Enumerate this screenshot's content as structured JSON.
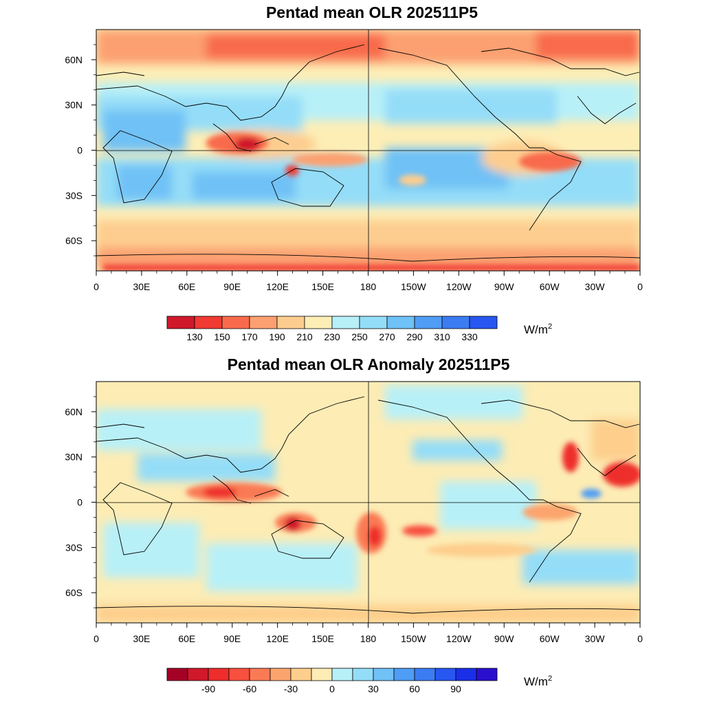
{
  "chart_data": [
    {
      "type": "heatmap",
      "title": "Pentad mean OLR 202511P5",
      "variable": "OLR",
      "units_text": "W/m",
      "units_sup": "2",
      "x_ticks": [
        "0",
        "30E",
        "60E",
        "90E",
        "120E",
        "150E",
        "180",
        "150W",
        "120W",
        "90W",
        "60W",
        "30W",
        "0"
      ],
      "y_ticks": [
        "60N",
        "30N",
        "0",
        "30S",
        "60S"
      ],
      "x_range_deg": [
        0,
        360
      ],
      "y_range_deg": [
        -80,
        80
      ],
      "colorbar_levels": [
        130,
        150,
        170,
        190,
        210,
        230,
        250,
        270,
        290,
        310,
        330
      ],
      "colorbar_labels": [
        "130",
        "150",
        "170",
        "190",
        "210",
        "230",
        "250",
        "270",
        "290",
        "310",
        "330"
      ],
      "colorbar_colors": [
        "#d0182b",
        "#f03a32",
        "#f86a4c",
        "#fca071",
        "#fdcd8f",
        "#fdeeb6",
        "#b8f0f8",
        "#94ddf8",
        "#6fc1f6",
        "#4f9df5",
        "#3c7cf2",
        "#2757f0"
      ]
    },
    {
      "type": "heatmap",
      "title": "Pentad mean OLR Anomaly 202511P5",
      "variable": "OLR anomaly",
      "units_text": "W/m",
      "units_sup": "2",
      "x_ticks": [
        "0",
        "30E",
        "60E",
        "90E",
        "120E",
        "150E",
        "180",
        "150W",
        "120W",
        "90W",
        "60W",
        "30W",
        "0"
      ],
      "y_ticks": [
        "60N",
        "30N",
        "0",
        "30S",
        "60S"
      ],
      "x_range_deg": [
        0,
        360
      ],
      "y_range_deg": [
        -80,
        80
      ],
      "colorbar_levels": [
        -105,
        -90,
        -75,
        -60,
        -45,
        -30,
        -15,
        0,
        15,
        30,
        45,
        60,
        75,
        90,
        105
      ],
      "colorbar_labels": [
        "-90",
        "-60",
        "-30",
        "0",
        "30",
        "60",
        "90"
      ],
      "colorbar_colors": [
        "#a50026",
        "#d0182b",
        "#ee2d2c",
        "#f7503f",
        "#fa7a55",
        "#fca46d",
        "#fdce8c",
        "#fdecb4",
        "#b8f0f8",
        "#94ddf8",
        "#6fc1f6",
        "#4f9df5",
        "#3c7cf2",
        "#2757f0",
        "#1b2ee8",
        "#2a0fcf"
      ]
    }
  ]
}
